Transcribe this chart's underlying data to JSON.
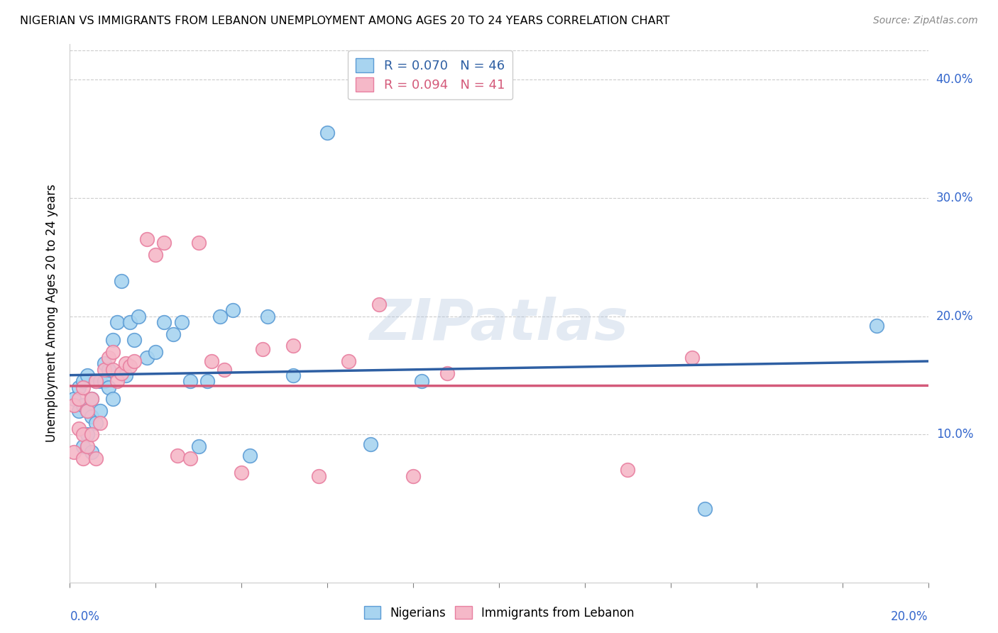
{
  "title": "NIGERIAN VS IMMIGRANTS FROM LEBANON UNEMPLOYMENT AMONG AGES 20 TO 24 YEARS CORRELATION CHART",
  "source": "Source: ZipAtlas.com",
  "ylabel": "Unemployment Among Ages 20 to 24 years",
  "ytick_vals": [
    0.0,
    0.1,
    0.2,
    0.3,
    0.4
  ],
  "ytick_labels": [
    "",
    "10.0%",
    "20.0%",
    "30.0%",
    "40.0%"
  ],
  "xrange": [
    0.0,
    0.2
  ],
  "yrange": [
    -0.025,
    0.43
  ],
  "legend_r1": "0.070",
  "legend_n1": "46",
  "legend_r2": "0.094",
  "legend_n2": "41",
  "color_nigerian_fill": "#a8d4f0",
  "color_nigerian_edge": "#5b9bd5",
  "color_nigerian_line": "#2e5fa3",
  "color_lebanon_fill": "#f5b8c8",
  "color_lebanon_edge": "#e87fa0",
  "color_lebanon_line": "#d45a7a",
  "watermark": "ZIPatlas",
  "nigerian_x": [
    0.001,
    0.002,
    0.002,
    0.003,
    0.003,
    0.003,
    0.004,
    0.004,
    0.004,
    0.005,
    0.005,
    0.005,
    0.006,
    0.006,
    0.007,
    0.007,
    0.008,
    0.008,
    0.009,
    0.009,
    0.01,
    0.01,
    0.011,
    0.012,
    0.013,
    0.014,
    0.015,
    0.016,
    0.018,
    0.02,
    0.022,
    0.024,
    0.026,
    0.028,
    0.03,
    0.032,
    0.035,
    0.038,
    0.042,
    0.046,
    0.052,
    0.06,
    0.07,
    0.082,
    0.148,
    0.188
  ],
  "nigerian_y": [
    0.13,
    0.12,
    0.14,
    0.09,
    0.125,
    0.145,
    0.1,
    0.12,
    0.15,
    0.115,
    0.13,
    0.085,
    0.145,
    0.11,
    0.12,
    0.145,
    0.145,
    0.16,
    0.155,
    0.14,
    0.13,
    0.18,
    0.195,
    0.23,
    0.15,
    0.195,
    0.18,
    0.2,
    0.165,
    0.17,
    0.195,
    0.185,
    0.195,
    0.145,
    0.09,
    0.145,
    0.2,
    0.205,
    0.082,
    0.2,
    0.15,
    0.355,
    0.092,
    0.145,
    0.037,
    0.192
  ],
  "lebanon_x": [
    0.001,
    0.001,
    0.002,
    0.002,
    0.003,
    0.003,
    0.003,
    0.004,
    0.004,
    0.005,
    0.005,
    0.006,
    0.006,
    0.007,
    0.008,
    0.009,
    0.01,
    0.01,
    0.011,
    0.012,
    0.013,
    0.014,
    0.015,
    0.018,
    0.02,
    0.022,
    0.025,
    0.028,
    0.03,
    0.033,
    0.036,
    0.04,
    0.045,
    0.052,
    0.058,
    0.065,
    0.072,
    0.08,
    0.088,
    0.13,
    0.145
  ],
  "lebanon_y": [
    0.125,
    0.085,
    0.105,
    0.13,
    0.08,
    0.14,
    0.1,
    0.09,
    0.12,
    0.1,
    0.13,
    0.145,
    0.08,
    0.11,
    0.155,
    0.165,
    0.155,
    0.17,
    0.145,
    0.152,
    0.16,
    0.158,
    0.162,
    0.265,
    0.252,
    0.262,
    0.082,
    0.08,
    0.262,
    0.162,
    0.155,
    0.068,
    0.172,
    0.175,
    0.065,
    0.162,
    0.21,
    0.065,
    0.152,
    0.07,
    0.165
  ]
}
